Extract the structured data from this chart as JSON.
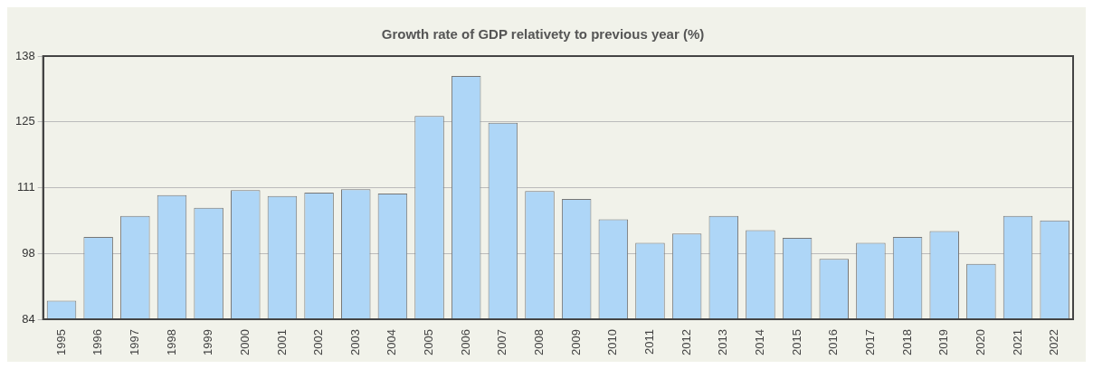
{
  "chart_data": {
    "type": "bar",
    "title": "Growth rate of GDP relativety to previous year (%)",
    "categories": [
      "1995",
      "1996",
      "1997",
      "1998",
      "1999",
      "2000",
      "2001",
      "2002",
      "2003",
      "2004",
      "2005",
      "2006",
      "2007",
      "2008",
      "2009",
      "2010",
      "2011",
      "2012",
      "2013",
      "2014",
      "2015",
      "2016",
      "2017",
      "2018",
      "2019",
      "2020",
      "2021",
      "2022"
    ],
    "values": [
      87.8,
      100.9,
      105.2,
      109.5,
      106.9,
      110.5,
      109.3,
      110.0,
      110.7,
      109.8,
      125.7,
      133.9,
      124.3,
      110.3,
      108.7,
      104.5,
      99.7,
      101.6,
      105.2,
      102.3,
      100.7,
      96.4,
      99.7,
      100.9,
      102.1,
      95.4,
      105.2,
      104.3
    ],
    "color": "#aed6f7",
    "ylim": [
      84,
      138
    ],
    "yticks": [
      84,
      {
        "value": 97.5,
        "label": "98"
      },
      111,
      {
        "value": 124.5,
        "label": "125"
      },
      138
    ],
    "grid": "y",
    "legend": false
  }
}
